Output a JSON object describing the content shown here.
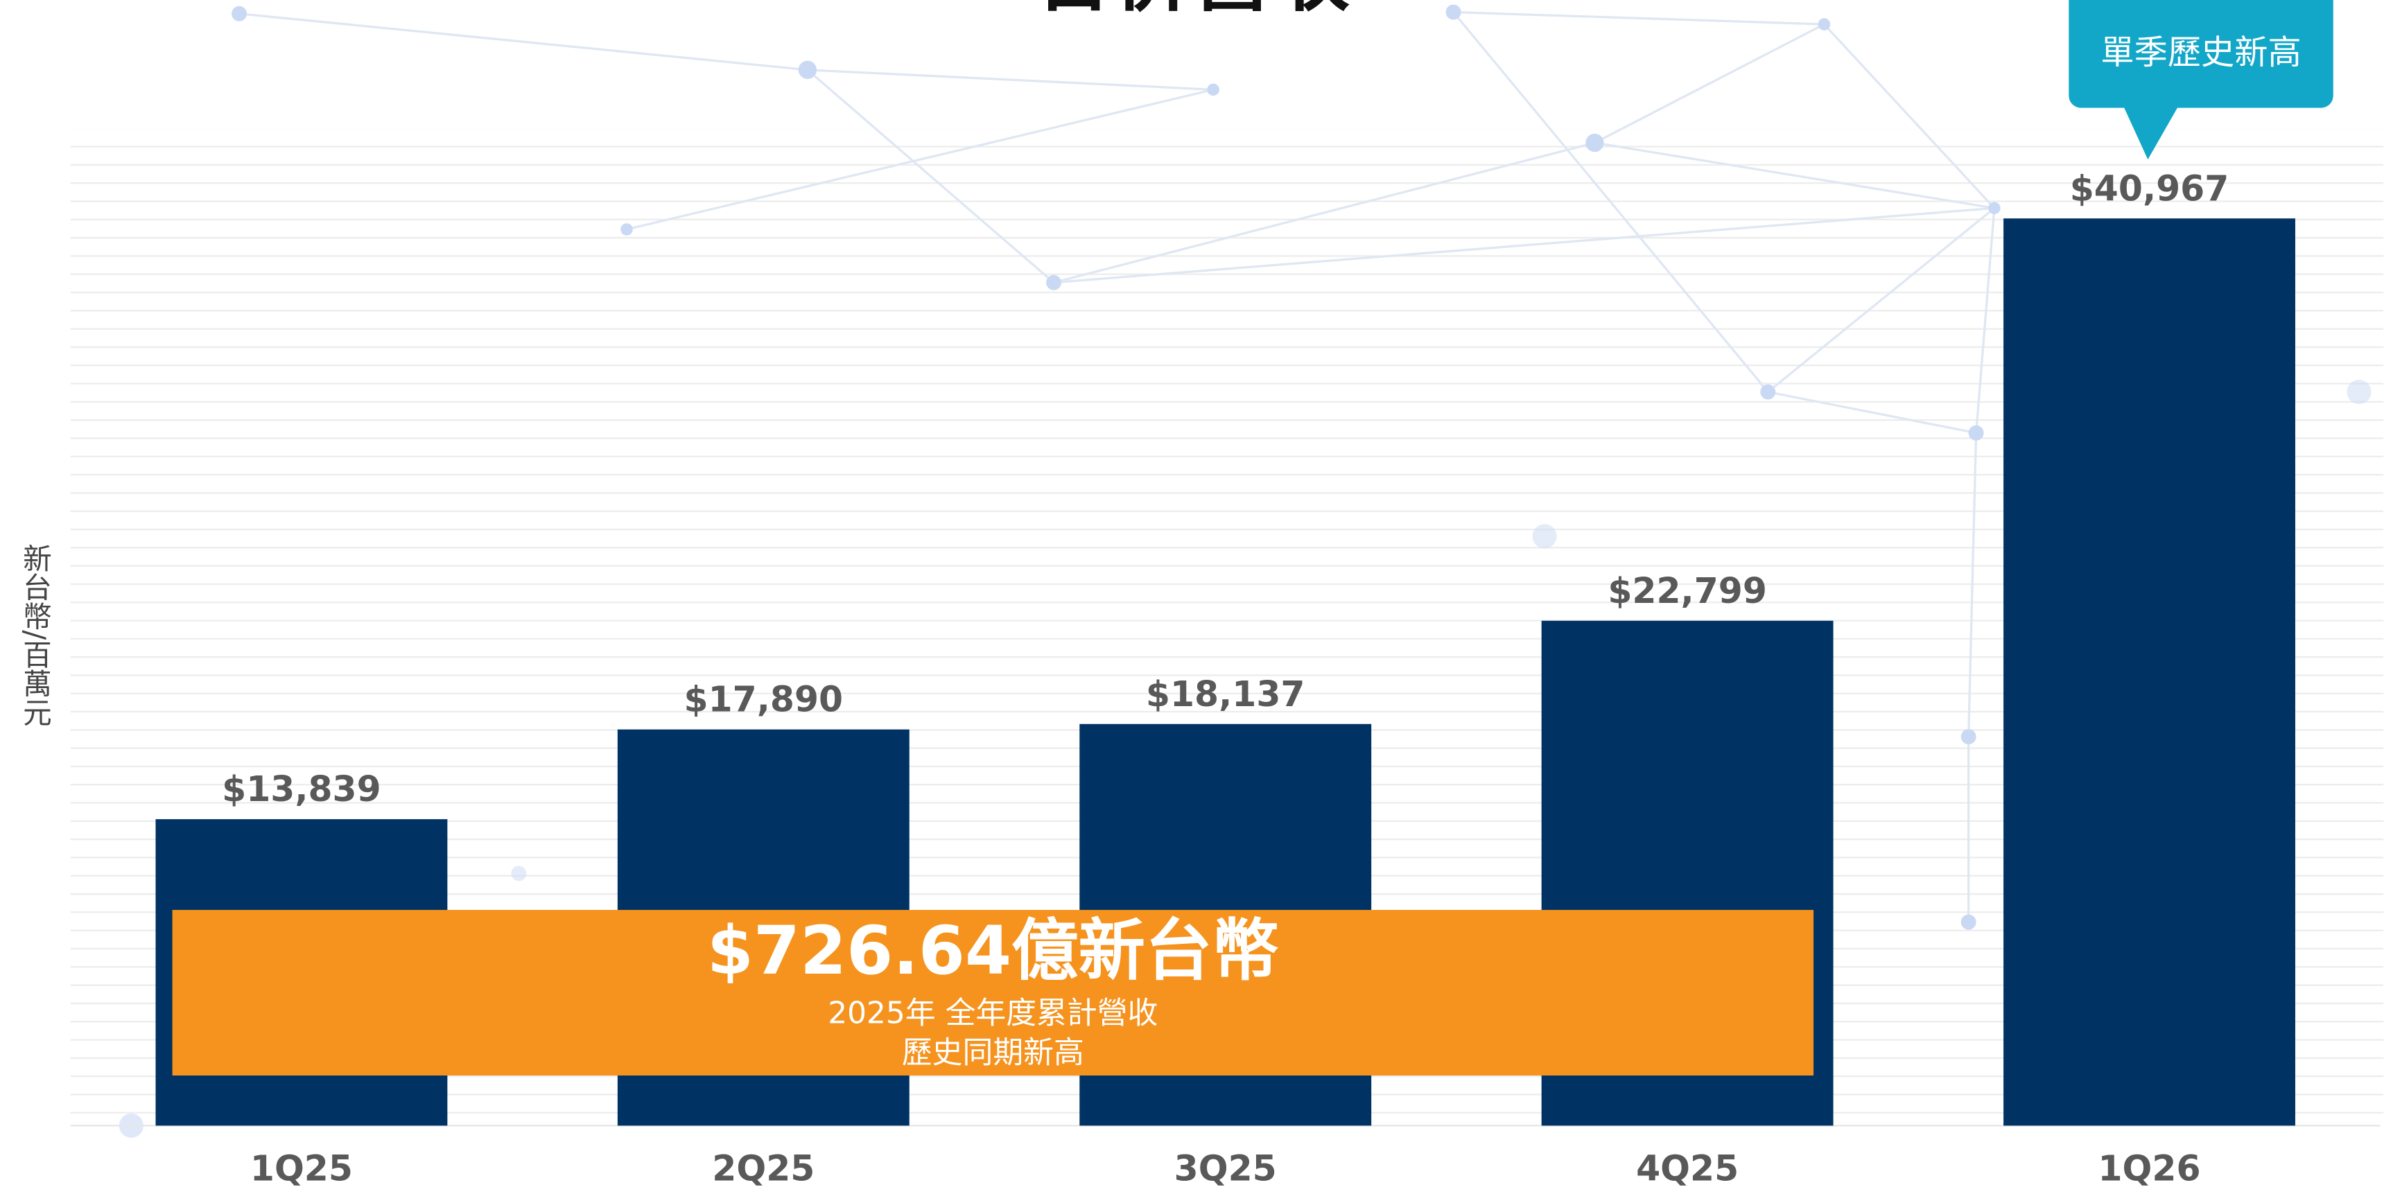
{
  "chart_data": {
    "type": "bar",
    "title": "合併營收",
    "y_label": "新台幣/百萬元",
    "categories": [
      "1Q25",
      "2Q25",
      "3Q25",
      "4Q25",
      "1Q26"
    ],
    "values": [
      13839,
      17890,
      18137,
      22799,
      40967
    ],
    "value_labels": [
      "$13,839",
      "$17,890",
      "$18,137",
      "$22,799",
      "$40,967"
    ],
    "color": "#003263",
    "ylim": [
      0,
      45000
    ],
    "annotations": [
      "單季歷史新高",
      "$726.64億新台幣",
      "2025年 全年度累計營收",
      "歷史同期新高"
    ]
  }
}
